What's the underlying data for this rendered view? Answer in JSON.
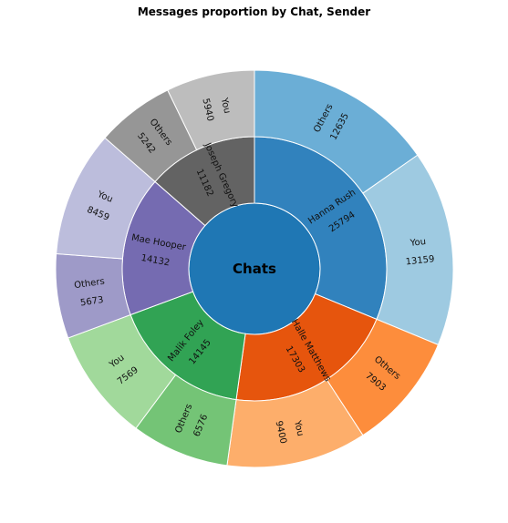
{
  "chart_data": {
    "type": "sunburst",
    "title": "Messages proportion by Chat, Sender",
    "root_label": "Chats",
    "colors": {
      "root": "#1f77b4"
    },
    "chats": [
      {
        "name": "Hanna  Rush",
        "value": 25794,
        "color": "#3182bd",
        "senders": [
          {
            "name": "Others",
            "value": 12635,
            "color": "#6baed6"
          },
          {
            "name": "You",
            "value": 13159,
            "color": "#9ecae1"
          }
        ]
      },
      {
        "name": "Halle  Matthews",
        "value": 17303,
        "color": "#e6550d",
        "senders": [
          {
            "name": "Others",
            "value": 7903,
            "color": "#fd8d3c"
          },
          {
            "name": "You",
            "value": 9400,
            "color": "#fdae6b"
          }
        ]
      },
      {
        "name": "Malik  Foley",
        "value": 14145,
        "color": "#31a354",
        "senders": [
          {
            "name": "Others",
            "value": 6576,
            "color": "#74c476"
          },
          {
            "name": "You",
            "value": 7569,
            "color": "#a1d99b"
          }
        ]
      },
      {
        "name": "Mae  Hooper",
        "value": 14132,
        "color": "#756bb1",
        "senders": [
          {
            "name": "Others",
            "value": 5673,
            "color": "#9e9ac8"
          },
          {
            "name": "You",
            "value": 8459,
            "color": "#bcbddc"
          }
        ]
      },
      {
        "name": "Joseph  Gregory",
        "value": 11182,
        "color": "#636363",
        "senders": [
          {
            "name": "Others",
            "value": 5242,
            "color": "#969696"
          },
          {
            "name": "You",
            "value": 5940,
            "color": "#bdbdbd"
          }
        ]
      }
    ]
  }
}
